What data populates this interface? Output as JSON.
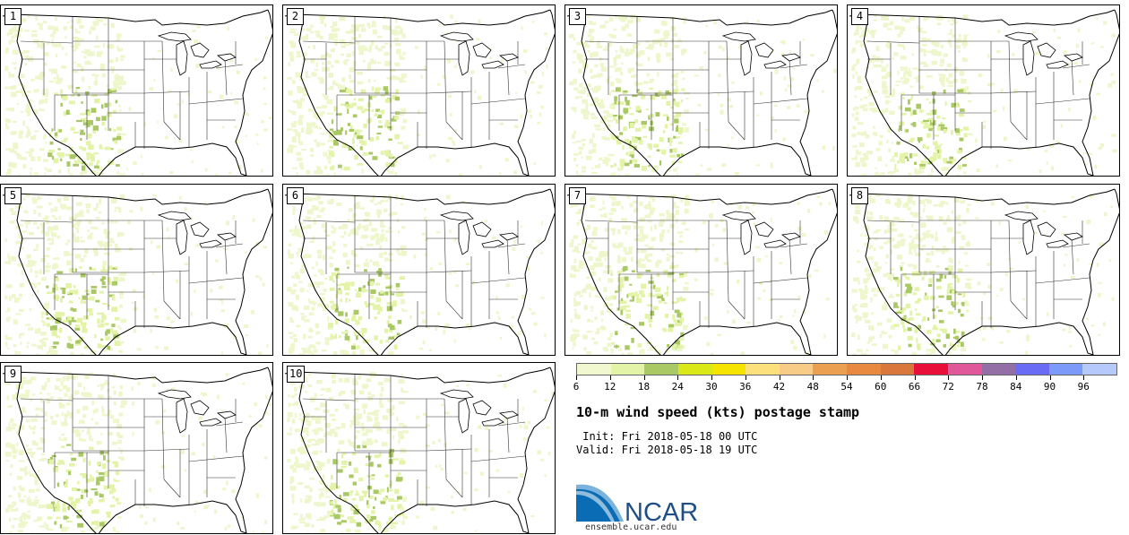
{
  "panels": [
    {
      "label": "1"
    },
    {
      "label": "2"
    },
    {
      "label": "3"
    },
    {
      "label": "4"
    },
    {
      "label": "5"
    },
    {
      "label": "6"
    },
    {
      "label": "7"
    },
    {
      "label": "8"
    },
    {
      "label": "9"
    },
    {
      "label": "10"
    }
  ],
  "legend": {
    "colors": [
      "#f1f7cf",
      "#e3f3a8",
      "#a9c964",
      "#dbe818",
      "#f4e400",
      "#fbe07c",
      "#f6cc86",
      "#eba051",
      "#e8893f",
      "#d9773c",
      "#e8103a",
      "#e0589a",
      "#946fa6",
      "#6a6cf5",
      "#7c9afa",
      "#b5c9fa"
    ],
    "tick_labels": [
      "6",
      "12",
      "18",
      "24",
      "30",
      "36",
      "42",
      "48",
      "54",
      "60",
      "66",
      "72",
      "78",
      "84",
      "90",
      "96"
    ]
  },
  "title": "10-m wind speed (kts) postage stamp",
  "init_text": " Init: Fri 2018-05-18 00 UTC",
  "valid_text": "Valid: Fri 2018-05-18 19 UTC",
  "logo": {
    "text": "NCAR",
    "url": "ensemble.ucar.edu",
    "brand_color": "#0a5a9c"
  }
}
